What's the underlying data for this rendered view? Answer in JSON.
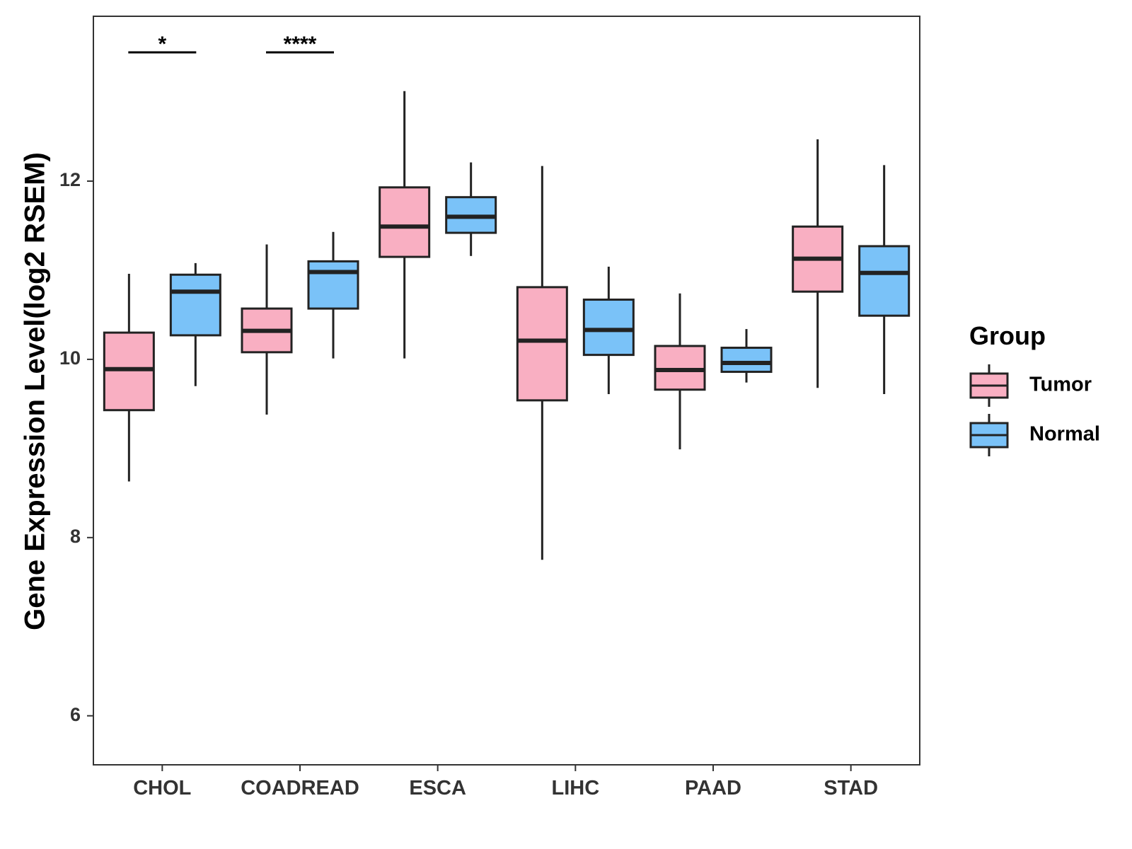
{
  "chart_data": {
    "type": "boxplot",
    "title": "",
    "xlabel": "",
    "ylabel": "Gene Expression Level(log2 RSEM)",
    "ylim": [
      5.45,
      13.85
    ],
    "yticks": [
      6,
      8,
      10,
      12
    ],
    "grid": false,
    "categories": [
      "CHOL",
      "COADREAD",
      "ESCA",
      "LIHC",
      "PAAD",
      "STAD"
    ],
    "legend": {
      "title": "Group",
      "position": "right"
    },
    "series": [
      {
        "name": "Tumor",
        "color": "#f9afc2",
        "boxes": [
          {
            "min": 8.63,
            "q1": 9.43,
            "median": 9.89,
            "q3": 10.3,
            "max": 10.96
          },
          {
            "min": 9.38,
            "q1": 10.08,
            "median": 10.32,
            "q3": 10.57,
            "max": 11.29
          },
          {
            "min": 10.01,
            "q1": 11.15,
            "median": 11.49,
            "q3": 11.93,
            "max": 13.01
          },
          {
            "min": 7.75,
            "q1": 9.54,
            "median": 10.21,
            "q3": 10.81,
            "max": 12.17
          },
          {
            "min": 8.99,
            "q1": 9.66,
            "median": 9.88,
            "q3": 10.15,
            "max": 10.74
          },
          {
            "min": 9.68,
            "q1": 10.76,
            "median": 11.13,
            "q3": 11.49,
            "max": 12.47
          }
        ]
      },
      {
        "name": "Normal",
        "color": "#7ac2f8",
        "boxes": [
          {
            "min": 9.7,
            "q1": 10.27,
            "median": 10.76,
            "q3": 10.95,
            "max": 11.08
          },
          {
            "min": 10.01,
            "q1": 10.57,
            "median": 10.98,
            "q3": 11.1,
            "max": 11.43
          },
          {
            "min": 11.16,
            "q1": 11.42,
            "median": 11.6,
            "q3": 11.82,
            "max": 12.21
          },
          {
            "min": 9.61,
            "q1": 10.05,
            "median": 10.33,
            "q3": 10.67,
            "max": 11.04
          },
          {
            "min": 9.74,
            "q1": 9.86,
            "median": 9.96,
            "q3": 10.13,
            "max": 10.34
          },
          {
            "min": 9.61,
            "q1": 10.49,
            "median": 10.97,
            "q3": 11.27,
            "max": 12.18
          }
        ]
      }
    ],
    "annotations": [
      {
        "category": "CHOL",
        "label": "*"
      },
      {
        "category": "COADREAD",
        "label": "****"
      }
    ]
  }
}
